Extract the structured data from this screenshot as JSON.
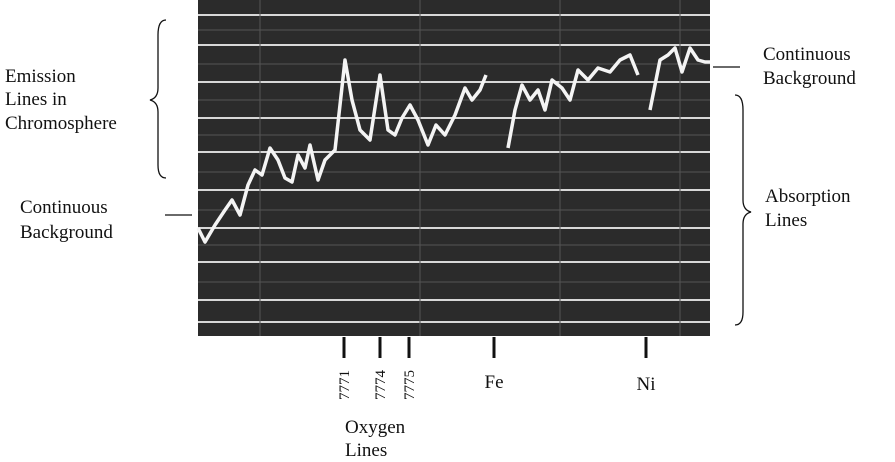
{
  "annotations": {
    "emission": [
      "Emission",
      "Lines in",
      "Chromosphere"
    ],
    "continuous_left": [
      "Continuous",
      "Background"
    ],
    "continuous_right": [
      "Continuous",
      "Background"
    ],
    "absorption": [
      "Absorption",
      "Lines"
    ],
    "oxygen": [
      "Oxygen",
      "Lines"
    ]
  },
  "markers": [
    "7771",
    "7774",
    "7775",
    "Fe",
    "Ni"
  ]
}
